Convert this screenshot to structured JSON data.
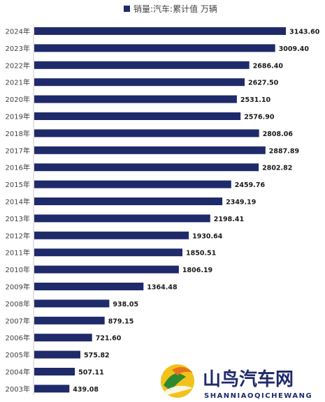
{
  "chart_data": {
    "type": "bar",
    "orientation": "horizontal",
    "title": "",
    "legend": [
      {
        "name": "销量:汽车:累计值 万辆",
        "color": "#1f2a6b"
      }
    ],
    "legend_position": "top",
    "categories": [
      "2024年",
      "2023年",
      "2022年",
      "2021年",
      "2020年",
      "2019年",
      "2018年",
      "2017年",
      "2016年",
      "2015年",
      "2014年",
      "2013年",
      "2012年",
      "2011年",
      "2010年",
      "2009年",
      "2008年",
      "2007年",
      "2006年",
      "2005年",
      "2004年",
      "2003年"
    ],
    "series": [
      {
        "name": "销量:汽车:累计值 万辆",
        "values": [
          3143.6,
          3009.4,
          2686.4,
          2627.5,
          2531.1,
          2576.9,
          2808.06,
          2887.89,
          2802.82,
          2459.76,
          2349.19,
          2198.41,
          1930.64,
          1850.51,
          1806.19,
          1364.48,
          938.05,
          879.15,
          721.6,
          575.82,
          507.11,
          439.08
        ],
        "labels": [
          "3143.60",
          "3009.40",
          "2686.40",
          "2627.50",
          "2531.10",
          "2576.90",
          "2808.06",
          "2887.89",
          "2802.82",
          "2459.76",
          "2349.19",
          "2198.41",
          "1930.64",
          "1850.51",
          "1806.19",
          "1364.48",
          "938.05",
          "879.15",
          "721.60",
          "575.82",
          "507.11",
          "439.08"
        ]
      }
    ],
    "xlim": [
      0,
      3300
    ],
    "grid": false,
    "bar_color": "#1f2a6b"
  },
  "watermark": {
    "name": "山鸟汽车网",
    "subtitle": "SHANNIAOQICHEWANG",
    "logo_icon": "mountain-bird-logo-icon"
  }
}
